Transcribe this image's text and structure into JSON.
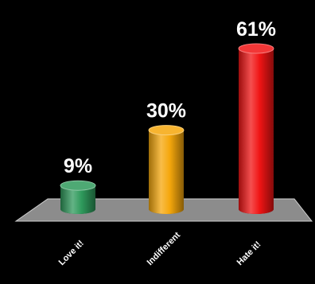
{
  "chart_data": {
    "type": "bar",
    "style": "3d-cylinder",
    "categories": [
      "Love it!",
      "Indifferent",
      "Hate it!"
    ],
    "values": [
      9,
      30,
      61
    ],
    "value_labels": [
      "9%",
      "30%",
      "61%"
    ],
    "colors": [
      "#2f9a5c",
      "#f5a70c",
      "#f01414"
    ],
    "title": "",
    "xlabel": "",
    "ylabel": "",
    "ylim": [
      0,
      61
    ],
    "grid": false,
    "legend": "none"
  },
  "colors": {
    "background": "#000000",
    "floor": "#8c8c8c",
    "label": "#ffffff"
  }
}
